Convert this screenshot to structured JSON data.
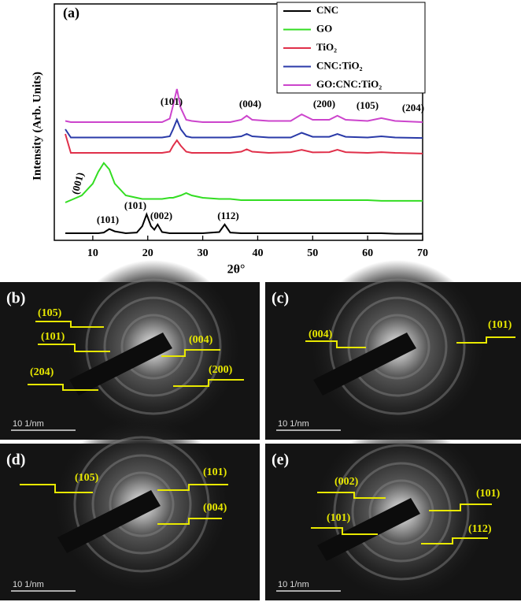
{
  "chart_data": {
    "type": "line",
    "panel_label": "(a)",
    "x_label": "2θ°",
    "y_label": "Intensity (Arb. Units)",
    "xlim": [
      3,
      70
    ],
    "xticks": [
      10,
      20,
      30,
      40,
      50,
      60,
      70
    ],
    "ylim": [
      0,
      100
    ],
    "x": [
      5,
      6,
      8,
      10,
      11,
      12,
      13,
      14,
      16,
      18,
      19,
      19.8,
      20.6,
      21.2,
      21.8,
      22.6,
      24,
      24.6,
      25.3,
      26,
      27,
      28,
      30,
      33,
      34,
      35,
      37,
      38,
      39,
      42,
      46,
      48,
      50,
      53,
      54.5,
      56,
      60,
      62.5,
      65,
      70
    ],
    "series": [
      {
        "name": "CNC",
        "color": "#000000",
        "values": [
          3,
          3,
          3,
          3,
          3,
          3.3,
          4.8,
          3.8,
          3,
          3.3,
          6,
          11,
          6,
          4.5,
          6.7,
          3.5,
          3,
          3,
          3,
          3,
          3,
          3,
          3,
          3.5,
          6.7,
          3.3,
          3,
          3,
          3,
          3,
          3,
          3,
          3,
          3,
          3,
          3,
          3,
          3,
          2.8,
          2.8
        ]
      },
      {
        "name": "GO",
        "color": "#33dd22",
        "values": [
          16,
          17,
          19,
          24,
          29,
          32.7,
          30,
          24,
          19,
          18,
          17.5,
          17.5,
          17.5,
          17.5,
          17.5,
          17.5,
          18,
          18,
          18.5,
          19,
          20,
          19,
          18,
          17.5,
          17.5,
          17.5,
          17,
          17,
          17,
          17,
          17,
          17,
          17,
          17,
          17,
          17,
          17,
          16.7,
          16.7,
          16.7
        ]
      },
      {
        "name": "TiO₂",
        "color": "#e0304a",
        "values": [
          45,
          37,
          37,
          37,
          37,
          37,
          37,
          37,
          37,
          37,
          37,
          37,
          37,
          37,
          37,
          37,
          37.5,
          40,
          42.3,
          40,
          37.5,
          37,
          37,
          37,
          37,
          37,
          37.5,
          38.5,
          37.5,
          37,
          37.3,
          38.3,
          37.2,
          37.3,
          38.3,
          37.3,
          37,
          37.3,
          37,
          36.7
        ]
      },
      {
        "name": "CNC:TiO₂",
        "color": "#2a3aa8",
        "values": [
          47,
          43.5,
          43.5,
          43.5,
          43.5,
          43.5,
          43.5,
          43.5,
          43.5,
          43.5,
          43.5,
          43.5,
          43.5,
          43.5,
          43.5,
          43.5,
          44,
          47,
          51,
          47,
          44,
          43.5,
          43.5,
          43.5,
          43.5,
          43.5,
          44,
          45,
          44,
          43.5,
          43.5,
          45.5,
          43.8,
          43.8,
          45,
          43.8,
          43.5,
          44,
          43.5,
          43.3
        ]
      },
      {
        "name": "GO:CNC:TiO₂",
        "color": "#cc44cc",
        "values": [
          50.5,
          50,
          50,
          50,
          50,
          50,
          50,
          50,
          50,
          50,
          50,
          50,
          50,
          50,
          50,
          50,
          51.5,
          57,
          64,
          56,
          51,
          50.5,
          50,
          50,
          50,
          50,
          51,
          52.7,
          51,
          50.5,
          50.5,
          53.3,
          51,
          51,
          52.7,
          51,
          50.5,
          51.7,
          50.5,
          50
        ]
      }
    ],
    "annotations": [
      "(101)",
      "(004)",
      "(200)",
      "(105)",
      "(204)",
      "(001)",
      "(101)",
      "(101)",
      "(002)",
      "(112)"
    ]
  },
  "panels": [
    {
      "label": "(b)",
      "annotations": [
        "(105)",
        "(101)",
        "(204)",
        "(004)",
        "(200)"
      ],
      "scale": "10 1/nm"
    },
    {
      "label": "(c)",
      "annotations": [
        "(004)",
        "(101)"
      ],
      "scale": "10 1/nm"
    },
    {
      "label": "(d)",
      "annotations": [
        "(105)",
        "(101)",
        "(004)"
      ],
      "scale": "10 1/nm"
    },
    {
      "label": "(e)",
      "annotations": [
        "(002)",
        "(101)",
        "(101)",
        "(112)"
      ],
      "scale": "10 1/nm"
    }
  ]
}
